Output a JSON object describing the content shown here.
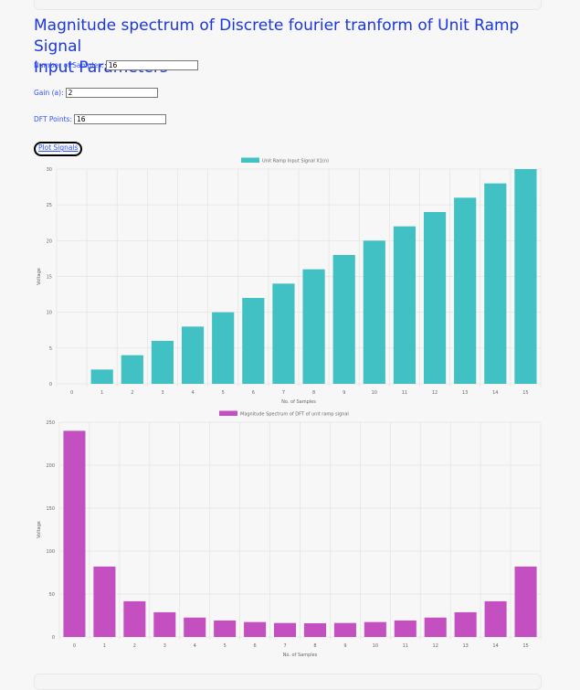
{
  "page": {
    "title": "Magnitude spectrum of Discrete fourier tranform of Unit Ramp Signal",
    "subtitle": "Input Parameters"
  },
  "form": {
    "samples": {
      "label": "Number of Samples:",
      "value": "16"
    },
    "gain": {
      "label": "Gain (a):",
      "value": "2"
    },
    "dft_points": {
      "label": "DFT Points:",
      "value": "16"
    },
    "plot_button": "Plot Signals"
  },
  "chart_data": [
    {
      "type": "bar",
      "categories": [
        "0",
        "1",
        "2",
        "3",
        "4",
        "5",
        "6",
        "7",
        "8",
        "9",
        "10",
        "11",
        "12",
        "13",
        "14",
        "15"
      ],
      "series": [
        {
          "name": "Unit Ramp Input Signal X1(n)",
          "values": [
            0,
            2,
            4,
            6,
            8,
            10,
            12,
            14,
            16,
            18,
            20,
            22,
            24,
            26,
            28,
            30
          ],
          "color": "#41c1c3"
        }
      ],
      "xlabel": "No. of Samples",
      "ylabel": "Voltage",
      "ylim": [
        0,
        30
      ],
      "yticks": [
        0,
        5,
        10,
        15,
        20,
        25,
        30
      ],
      "grid": true,
      "legend": "top-center"
    },
    {
      "type": "bar",
      "categories": [
        "0",
        "1",
        "2",
        "3",
        "4",
        "5",
        "6",
        "7",
        "8",
        "9",
        "10",
        "11",
        "12",
        "13",
        "14",
        "15"
      ],
      "series": [
        {
          "name": "Magnitude Spectrum of DFT of unit ramp signal",
          "values": [
            240,
            82,
            41.6,
            28.8,
            22.6,
            19.2,
            17.4,
            16.3,
            16,
            16.3,
            17.4,
            19.2,
            22.6,
            28.8,
            41.6,
            82
          ],
          "color": "#c44fc0"
        }
      ],
      "xlabel": "No. of Samples",
      "ylabel": "Voltage",
      "ylim": [
        0,
        250
      ],
      "yticks": [
        0,
        50,
        100,
        150,
        200,
        250
      ],
      "grid": true,
      "legend": "top-center"
    }
  ]
}
